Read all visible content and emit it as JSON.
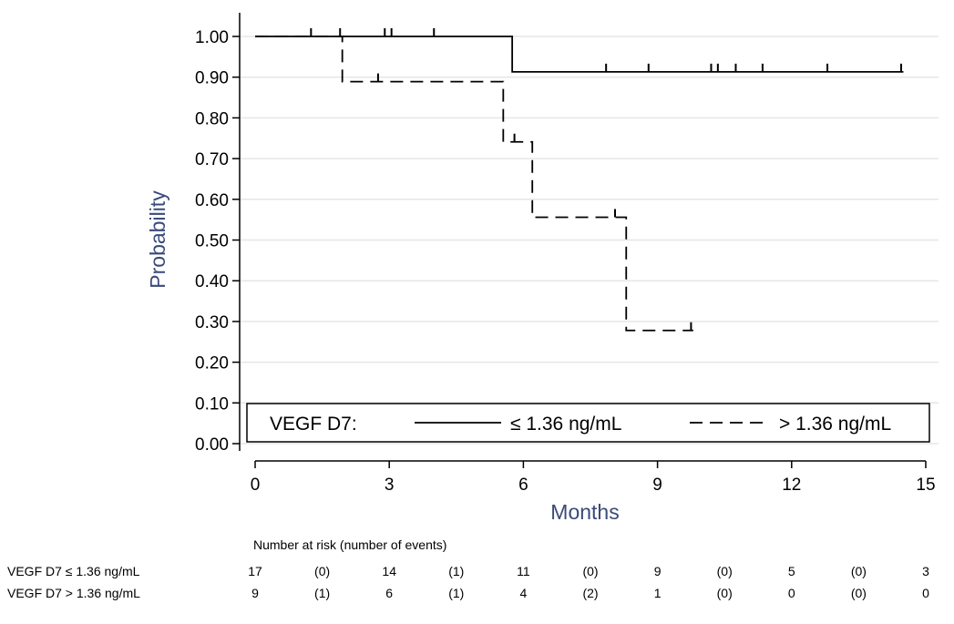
{
  "chart_data": {
    "type": "line",
    "subtype": "kaplan-meier",
    "xlabel": "Months",
    "ylabel": "Probability",
    "xlim": [
      0,
      15
    ],
    "ylim": [
      0,
      1
    ],
    "x_ticks": [
      0,
      3,
      6,
      9,
      12,
      15
    ],
    "y_ticks": [
      0.0,
      0.1,
      0.2,
      0.3,
      0.4,
      0.5,
      0.6,
      0.7,
      0.8,
      0.9,
      1.0
    ],
    "x_tick_labels": [
      "0",
      "3",
      "6",
      "9",
      "12",
      "15"
    ],
    "y_tick_labels": [
      "0.00",
      "0.10",
      "0.20",
      "0.30",
      "0.40",
      "0.50",
      "0.60",
      "0.70",
      "0.80",
      "0.90",
      "1.00"
    ],
    "grid": "horizontal",
    "legend": {
      "placement": "bottom-inside",
      "title": "VEGF D7:",
      "entries": [
        {
          "label": "≤ 1.36 ng/mL",
          "style": "solid"
        },
        {
          "label": "> 1.36 ng/mL",
          "style": "dashed"
        }
      ]
    },
    "series": [
      {
        "name": "≤ 1.36 ng/mL",
        "style": "solid",
        "steps": [
          [
            0,
            1.0
          ],
          [
            5.75,
            0.913
          ],
          [
            14.5,
            0.913
          ]
        ],
        "censor_times": [
          1.25,
          1.9,
          2.9,
          3.05,
          4.0,
          7.85,
          8.8,
          10.2,
          10.35,
          10.75,
          11.35,
          12.8,
          14.45
        ]
      },
      {
        "name": "> 1.36 ng/mL",
        "style": "dashed",
        "steps": [
          [
            0,
            1.0
          ],
          [
            1.95,
            0.889
          ],
          [
            5.55,
            0.741
          ],
          [
            6.2,
            0.556
          ],
          [
            8.3,
            0.278
          ],
          [
            9.8,
            0.278
          ]
        ],
        "censor_points": [
          [
            2.75,
            0.889
          ],
          [
            5.8,
            0.741
          ],
          [
            8.05,
            0.556
          ],
          [
            9.75,
            0.278
          ]
        ]
      }
    ],
    "risk_table": {
      "header": "Number at risk (number of events)",
      "columns": [
        0,
        1.5,
        3,
        4.5,
        6,
        7.5,
        9,
        10.5,
        12,
        13.5,
        15
      ],
      "rows": [
        {
          "label": "VEGF D7 ≤ 1.36 ng/mL",
          "values": [
            "17",
            "(0)",
            "14",
            "(1)",
            "11",
            "(0)",
            "9",
            "(0)",
            "5",
            "(0)",
            "3"
          ]
        },
        {
          "label": "VEGF D7 > 1.36 ng/mL",
          "values": [
            "9",
            "(1)",
            "6",
            "(1)",
            "4",
            "(2)",
            "1",
            "(0)",
            "0",
            "(0)",
            "0"
          ]
        }
      ]
    }
  }
}
